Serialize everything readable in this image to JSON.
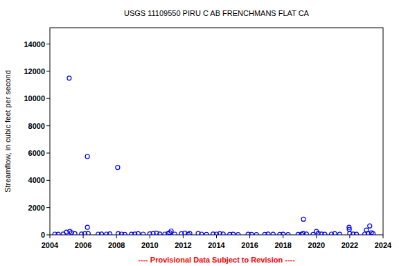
{
  "chart_data": {
    "type": "scatter",
    "title": "USGS 11109550 PIRU C AB FRENCHMANS FLAT CA",
    "y_label": "Streamflow, in cubic feet per second",
    "annotation": "---- Provisional Data Subject to Revision ----",
    "x": [
      2004.3,
      2004.5,
      2004.8,
      2005.0,
      2005.16,
      2005.2,
      2005.3,
      2005.5,
      2005.9,
      2006.1,
      2006.25,
      2006.25,
      2006.3,
      2006.9,
      2007.1,
      2007.4,
      2007.6,
      2008.07,
      2008.1,
      2008.3,
      2008.5,
      2008.9,
      2009.1,
      2009.3,
      2009.6,
      2010.0,
      2010.2,
      2010.4,
      2010.6,
      2010.9,
      2011.1,
      2011.2,
      2011.28,
      2011.5,
      2011.9,
      2012.1,
      2012.3,
      2012.4,
      2012.9,
      2013.1,
      2013.4,
      2013.8,
      2014.0,
      2014.2,
      2014.4,
      2014.8,
      2015.0,
      2015.3,
      2015.9,
      2016.1,
      2016.4,
      2016.9,
      2017.1,
      2017.4,
      2017.8,
      2018.0,
      2018.3,
      2018.9,
      2019.1,
      2019.2,
      2019.22,
      2019.4,
      2019.8,
      2020.0,
      2020.1,
      2020.3,
      2020.5,
      2020.9,
      2021.1,
      2021.4,
      2021.96,
      2021.97,
      2022.0,
      2022.2,
      2022.4,
      2022.9,
      2023.0,
      2023.1,
      2023.2,
      2023.3,
      2023.4
    ],
    "values": [
      50,
      40,
      60,
      200,
      11500,
      250,
      150,
      80,
      60,
      80,
      5750,
      550,
      100,
      50,
      60,
      50,
      70,
      4950,
      80,
      50,
      30,
      40,
      60,
      80,
      50,
      70,
      100,
      120,
      60,
      50,
      100,
      150,
      280,
      50,
      80,
      120,
      40,
      100,
      100,
      50,
      30,
      60,
      50,
      80,
      60,
      30,
      40,
      20,
      40,
      30,
      20,
      30,
      60,
      40,
      30,
      40,
      20,
      30,
      40,
      100,
      1150,
      60,
      30,
      250,
      100,
      60,
      40,
      50,
      80,
      40,
      550,
      400,
      100,
      60,
      40,
      50,
      350,
      100,
      650,
      150,
      80
    ],
    "color": "#0000ff",
    "marker": "circle",
    "xlim": [
      2004,
      2024
    ],
    "xticks": [
      2004,
      2006,
      2008,
      2010,
      2012,
      2014,
      2016,
      2018,
      2020,
      2022,
      2024
    ],
    "ylim": [
      0,
      15200
    ],
    "yticks": [
      0,
      2000,
      4000,
      6000,
      8000,
      10000,
      12000,
      14000
    ],
    "grid": false
  }
}
